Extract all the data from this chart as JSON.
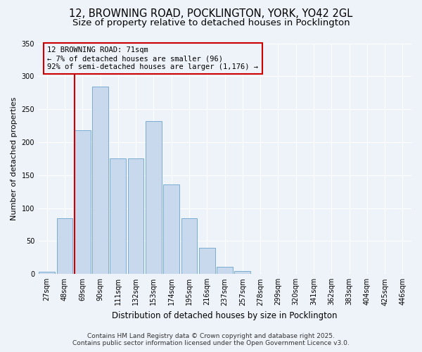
{
  "title_line1": "12, BROWNING ROAD, POCKLINGTON, YORK, YO42 2GL",
  "title_line2": "Size of property relative to detached houses in Pocklington",
  "xlabel": "Distribution of detached houses by size in Pocklington",
  "ylabel": "Number of detached properties",
  "categories": [
    "27sqm",
    "48sqm",
    "69sqm",
    "90sqm",
    "111sqm",
    "132sqm",
    "153sqm",
    "174sqm",
    "195sqm",
    "216sqm",
    "237sqm",
    "257sqm",
    "278sqm",
    "299sqm",
    "320sqm",
    "341sqm",
    "362sqm",
    "383sqm",
    "404sqm",
    "425sqm",
    "446sqm"
  ],
  "values": [
    3,
    85,
    218,
    284,
    175,
    175,
    232,
    136,
    85,
    40,
    11,
    5,
    0,
    0,
    0,
    0,
    0,
    0,
    0,
    0,
    0
  ],
  "bar_color": "#c8d8ed",
  "bar_edge_color": "#7aadd4",
  "property_line_color": "#cc0000",
  "annotation_box_color": "#cc0000",
  "annotation_title": "12 BROWNING ROAD: 71sqm",
  "annotation_line1": "← 7% of detached houses are smaller (96)",
  "annotation_line2": "92% of semi-detached houses are larger (1,176) →",
  "ylim": [
    0,
    350
  ],
  "yticks": [
    0,
    50,
    100,
    150,
    200,
    250,
    300,
    350
  ],
  "background_color": "#eef2f9",
  "grid_color": "#ffffff",
  "footer_line1": "Contains HM Land Registry data © Crown copyright and database right 2025.",
  "footer_line2": "Contains public sector information licensed under the Open Government Licence v3.0.",
  "title_fontsize": 10.5,
  "subtitle_fontsize": 9.5,
  "axis_label_fontsize": 8.5,
  "tick_fontsize": 7,
  "annotation_fontsize": 7.5,
  "footer_fontsize": 6.5,
  "ylabel_fontsize": 8
}
